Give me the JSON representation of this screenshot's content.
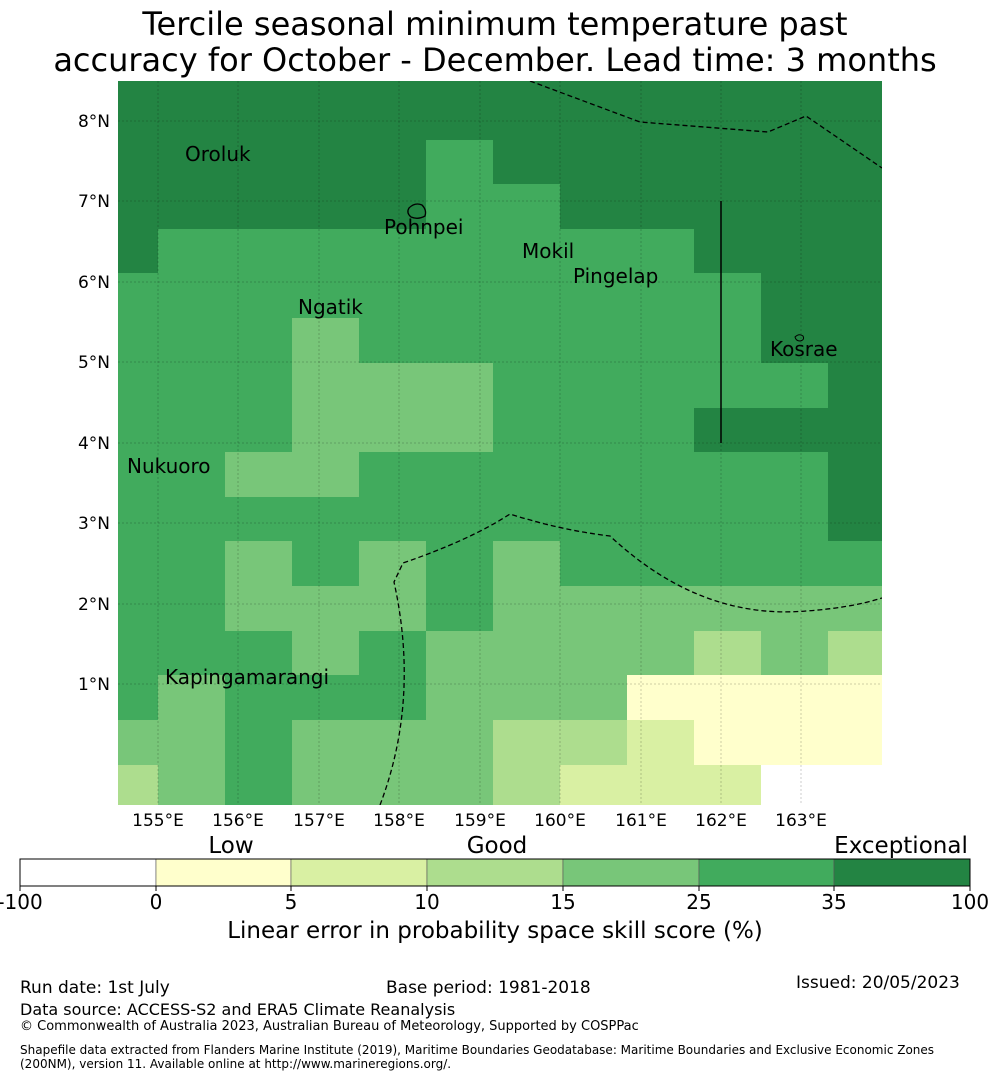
{
  "title": {
    "line1": "Tercile seasonal minimum temperature past",
    "line2": "accuracy for October - December. Lead time: 3 months"
  },
  "map": {
    "lat_labels": [
      "8°N",
      "7°N",
      "6°N",
      "5°N",
      "4°N",
      "3°N",
      "2°N",
      "1°N"
    ],
    "lon_labels": [
      "155°E",
      "156°E",
      "157°E",
      "158°E",
      "159°E",
      "160°E",
      "161°E",
      "162°E",
      "163°E"
    ],
    "places": [
      "Oroluk",
      "Pohnpei",
      "Mokil",
      "Pingelap",
      "Ngatik",
      "Kosrae",
      "Nukuoro",
      "Kapingamarangi"
    ]
  },
  "colorbar": {
    "categories": [
      "Low",
      "Good",
      "Exceptional"
    ],
    "ticks": [
      "-100",
      "0",
      "5",
      "10",
      "15",
      "25",
      "35",
      "100"
    ],
    "colors": [
      "#ffffff",
      "#ffffcc",
      "#d9f0a3",
      "#addd8e",
      "#78c679",
      "#41ab5d",
      "#238443"
    ],
    "title": "Linear error in probability space skill score (%)"
  },
  "footer": {
    "run_date": "Run date: 1st July",
    "base_period": "Base period: 1981-2018",
    "issued": "Issued: 20/05/2023",
    "data_source": "Data source: ACCESS-S2 and ERA5 Climate Reanalysis",
    "copyright": "© Commonwealth of Australia 2023, Australian Bureau of Meteorology, Supported by COSPPac",
    "shapefile_line1": "Shapefile data extracted from Flanders Marine Institute (2019), Maritime Boundaries Geodatabase: Maritime Boundaries and Exclusive Economic Zones",
    "shapefile_line2": "(200NM), version 11. Available online at http://www.marineregions.org/."
  }
}
